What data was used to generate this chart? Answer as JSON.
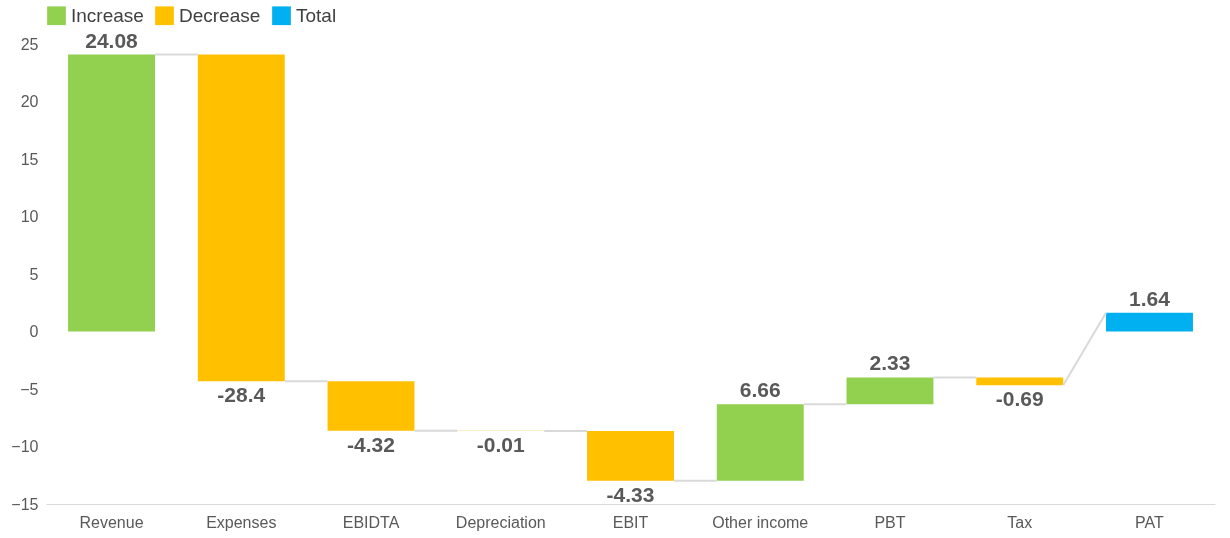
{
  "chart_data": {
    "type": "bar",
    "categories": [
      "Revenue",
      "Expenses",
      "EBIDTA",
      "Depreciation",
      "EBIT",
      "Other income",
      "PBT",
      "Tax",
      "PAT"
    ],
    "series": [
      {
        "name": "Increase",
        "color": "#92d050",
        "values": [
          24.08,
          null,
          null,
          null,
          null,
          6.66,
          2.33,
          null,
          null
        ],
        "base": [
          0,
          null,
          null,
          null,
          null,
          -12.98,
          -6.32,
          null,
          null
        ]
      },
      {
        "name": "Decrease",
        "color": "#ffc000",
        "values": [
          null,
          -28.4,
          -4.32,
          -0.01,
          -4.33,
          null,
          null,
          -0.69,
          null
        ],
        "base": [
          null,
          24.08,
          -4.32,
          -8.64,
          -8.65,
          null,
          null,
          -3.99,
          null
        ]
      },
      {
        "name": "Total",
        "color": "#00b0f0",
        "values": [
          null,
          null,
          null,
          null,
          null,
          null,
          null,
          null,
          1.64
        ],
        "base": [
          null,
          null,
          null,
          null,
          null,
          null,
          null,
          null,
          0
        ]
      }
    ],
    "ylim": [
      -15,
      25
    ],
    "yticks": [
      -15,
      -10,
      -5,
      0,
      5,
      10,
      15,
      20,
      25
    ],
    "grid": false,
    "legend": "top",
    "data_labels": true
  }
}
